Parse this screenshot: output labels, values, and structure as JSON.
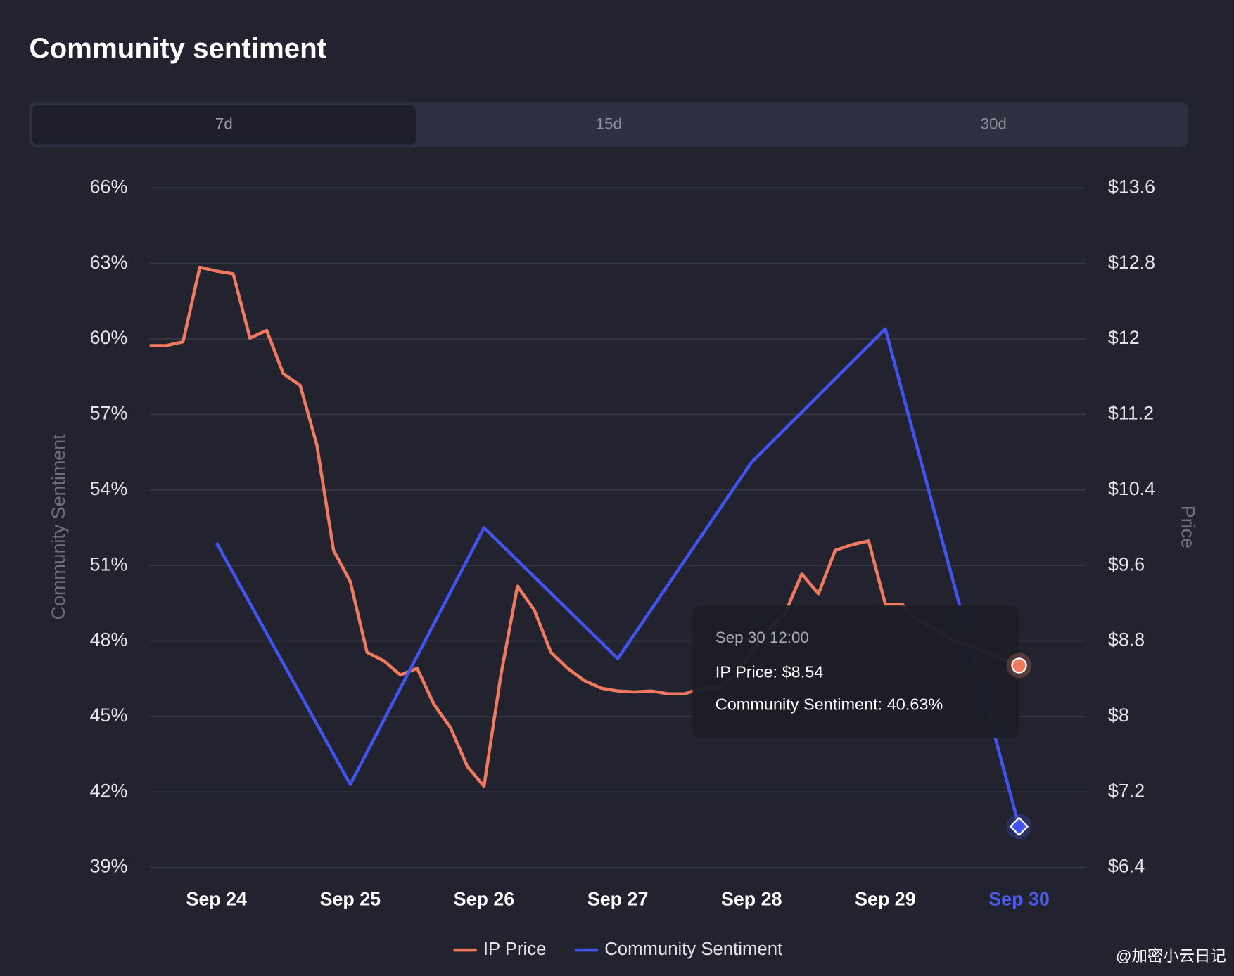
{
  "chart_data": {
    "type": "line",
    "title": "Community sentiment",
    "categories": [
      "Sep 24",
      "Sep 25",
      "Sep 26",
      "Sep 27",
      "Sep 28",
      "Sep 29",
      "Sep 30"
    ],
    "series": [
      {
        "name": "IP Price",
        "color": "#f07a5f",
        "axis": "y2",
        "x": [
          "Sep 24 00:00",
          "Sep 24 03:00",
          "Sep 24 06:00",
          "Sep 24 09:00",
          "Sep 24 12:00",
          "Sep 24 15:00",
          "Sep 24 18:00",
          "Sep 24 21:00",
          "Sep 25 00:00",
          "Sep 25 03:00",
          "Sep 25 06:00",
          "Sep 25 09:00",
          "Sep 25 12:00",
          "Sep 25 15:00",
          "Sep 25 18:00",
          "Sep 25 21:00",
          "Sep 26 00:00",
          "Sep 26 03:00",
          "Sep 26 06:00",
          "Sep 26 09:00",
          "Sep 26 12:00",
          "Sep 26 15:00",
          "Sep 26 18:00",
          "Sep 26 21:00",
          "Sep 27 00:00",
          "Sep 27 03:00",
          "Sep 27 06:00",
          "Sep 27 09:00",
          "Sep 27 12:00",
          "Sep 27 15:00",
          "Sep 27 18:00",
          "Sep 27 21:00",
          "Sep 28 00:00",
          "Sep 28 03:00",
          "Sep 28 06:00",
          "Sep 28 09:00",
          "Sep 28 12:00",
          "Sep 28 15:00",
          "Sep 28 18:00",
          "Sep 28 21:00",
          "Sep 29 00:00",
          "Sep 29 03:00",
          "Sep 29 06:00",
          "Sep 29 09:00",
          "Sep 29 12:00",
          "Sep 29 15:00",
          "Sep 29 18:00",
          "Sep 29 21:00",
          "Sep 30 00:00",
          "Sep 30 03:00",
          "Sep 30 06:00",
          "Sep 30 09:00",
          "Sep 30 12:00"
        ],
        "values": [
          11.93,
          11.93,
          11.97,
          12.76,
          12.72,
          12.69,
          12.01,
          12.09,
          11.63,
          11.51,
          10.88,
          9.76,
          9.43,
          8.68,
          8.59,
          8.44,
          8.51,
          8.13,
          7.88,
          7.47,
          7.26,
          8.43,
          9.38,
          9.13,
          8.68,
          8.51,
          8.38,
          8.3,
          8.27,
          8.26,
          8.27,
          8.24,
          8.24,
          8.3,
          8.3,
          8.43,
          8.68,
          8.93,
          9.09,
          9.51,
          9.3,
          9.76,
          9.82,
          9.86,
          9.19,
          9.19,
          9.01,
          8.93,
          8.8,
          8.76,
          8.68,
          8.61,
          8.54
        ]
      },
      {
        "name": "Community Sentiment",
        "color": "#4253f0",
        "values": [
          51.9,
          42.3,
          52.5,
          47.3,
          55.1,
          60.4,
          40.63
        ]
      }
    ],
    "ylabel": "Community Sentiment",
    "y2label": "Price",
    "ylim": [
      39,
      66
    ],
    "yticks": [
      {
        "value": 39,
        "label": "39%"
      },
      {
        "value": 42,
        "label": "42%"
      },
      {
        "value": 45,
        "label": "45%"
      },
      {
        "value": 48,
        "label": "48%"
      },
      {
        "value": 51,
        "label": "51%"
      },
      {
        "value": 54,
        "label": "54%"
      },
      {
        "value": 57,
        "label": "57%"
      },
      {
        "value": 60,
        "label": "60%"
      },
      {
        "value": 63,
        "label": "63%"
      },
      {
        "value": 66,
        "label": "66%"
      }
    ],
    "y2lim": [
      6.4,
      13.6
    ],
    "y2ticks": [
      {
        "value": 6.4,
        "label": "$6.4"
      },
      {
        "value": 7.2,
        "label": "$7.2"
      },
      {
        "value": 8,
        "label": "$8"
      },
      {
        "value": 8.8,
        "label": "$8.8"
      },
      {
        "value": 9.6,
        "label": "$9.6"
      },
      {
        "value": 10.4,
        "label": "$10.4"
      },
      {
        "value": 11.2,
        "label": "$11.2"
      },
      {
        "value": 12,
        "label": "$12"
      },
      {
        "value": 12.8,
        "label": "$12.8"
      },
      {
        "value": 13.6,
        "label": "$13.6"
      }
    ],
    "grid": true,
    "legend": "bottom"
  },
  "tabs": {
    "options": [
      "7d",
      "15d",
      "30d"
    ],
    "active": 0
  },
  "tooltip": {
    "title": "Sep 30 12:00",
    "lines": [
      "IP Price: $8.54",
      "Community Sentiment: 40.63%"
    ]
  },
  "watermark": "@加密小云日记"
}
